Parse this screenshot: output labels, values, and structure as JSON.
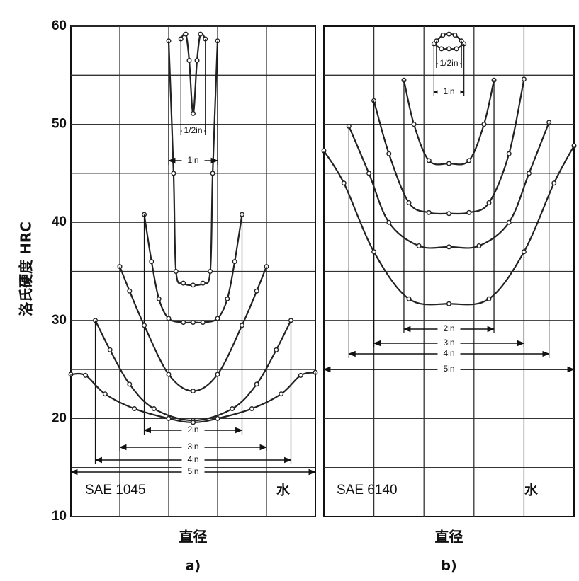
{
  "chart_data": [
    {
      "type": "line",
      "ylabel": "洛氏硬度  HRC",
      "xlabel": "直径",
      "panel": "a)",
      "note": "SAE 1045",
      "medium": "水",
      "xlim": [
        -2.5,
        2.5
      ],
      "ylim": [
        10,
        60
      ],
      "yticks": [
        10,
        20,
        30,
        40,
        50,
        60
      ],
      "xgrid": [
        -1.5,
        -0.5,
        0.5,
        1.5
      ],
      "ygrid": [
        15,
        25,
        35,
        45,
        55
      ],
      "color": "#222",
      "series": [
        {
          "name": "1/2in",
          "x": [
            -0.25,
            -0.15,
            -0.08,
            0,
            0.08,
            0.15,
            0.25
          ],
          "values": [
            58.7,
            59.2,
            56.5,
            51.1,
            56.5,
            59.2,
            58.7
          ]
        },
        {
          "name": "1in",
          "x": [
            -0.5,
            -0.4,
            -0.35,
            -0.2,
            0,
            0.2,
            0.35,
            0.4,
            0.5
          ],
          "values": [
            58.5,
            45,
            35,
            33.8,
            33.6,
            33.8,
            35,
            45,
            58.5
          ]
        },
        {
          "name": "2in",
          "x": [
            -1,
            -0.85,
            -0.7,
            -0.5,
            -0.2,
            0,
            0.2,
            0.5,
            0.7,
            0.85,
            1
          ],
          "values": [
            40.8,
            36,
            32.2,
            30.2,
            29.8,
            29.8,
            29.8,
            30.2,
            32.2,
            36,
            40.8
          ]
        },
        {
          "name": "3in",
          "x": [
            -1.5,
            -1.3,
            -1,
            -0.5,
            0,
            0.5,
            1,
            1.3,
            1.5
          ],
          "values": [
            35.5,
            33,
            29.5,
            24.5,
            22.8,
            24.5,
            29.5,
            33,
            35.5
          ]
        },
        {
          "name": "4in",
          "x": [
            -2,
            -1.7,
            -1.3,
            -0.8,
            0,
            0.8,
            1.3,
            1.7,
            2
          ],
          "values": [
            30,
            27,
            23.5,
            21,
            19.8,
            21,
            23.5,
            27,
            30
          ]
        },
        {
          "name": "5in",
          "x": [
            -2.5,
            -2.2,
            -1.8,
            -1.2,
            -0.5,
            0,
            0.5,
            1.2,
            1.8,
            2.2,
            2.5
          ],
          "values": [
            24.5,
            24.4,
            22.5,
            21,
            20,
            19.6,
            20,
            21,
            22.5,
            24.4,
            24.7
          ]
        }
      ]
    },
    {
      "type": "line",
      "xlabel": "直径",
      "panel": "b)",
      "note": "SAE 6140",
      "medium": "水",
      "xlim": [
        -2.5,
        2.5
      ],
      "ylim": [
        10,
        60
      ],
      "xgrid": [
        -1.5,
        -0.5,
        0.5,
        1.5
      ],
      "ygrid": [
        15,
        20,
        25,
        30,
        35,
        40,
        45,
        50,
        55
      ],
      "color": "#222",
      "series": [
        {
          "name": "1/2in",
          "x": [
            -0.25,
            -0.12,
            0,
            0.12,
            0.25
          ],
          "values": [
            58.5,
            59.1,
            59.2,
            59.1,
            58.5
          ]
        },
        {
          "name": "1in",
          "x": [
            -0.3,
            -0.15,
            0,
            0.15,
            0.3
          ],
          "values": [
            58.2,
            57.7,
            57.7,
            57.7,
            58.2
          ]
        },
        {
          "name": "2in",
          "x": [
            -0.9,
            -0.7,
            -0.4,
            0,
            0.4,
            0.7,
            0.9
          ],
          "values": [
            54.5,
            50,
            46.3,
            46,
            46.3,
            50,
            54.5
          ]
        },
        {
          "name": "3in",
          "x": [
            -1.5,
            -1.2,
            -0.8,
            -0.4,
            0,
            0.4,
            0.8,
            1.2,
            1.5
          ],
          "values": [
            52.4,
            47,
            42,
            41,
            40.9,
            41,
            42,
            47,
            54.6
          ]
        },
        {
          "name": "4in",
          "x": [
            -2,
            -1.6,
            -1.2,
            -0.6,
            0,
            0.6,
            1.2,
            1.6,
            2
          ],
          "values": [
            49.8,
            45,
            40,
            37.6,
            37.5,
            37.6,
            40,
            45,
            50.2
          ]
        },
        {
          "name": "5in",
          "x": [
            -2.5,
            -2.1,
            -1.5,
            -0.8,
            0,
            0.8,
            1.5,
            2.1,
            2.5
          ],
          "values": [
            47.3,
            44,
            37,
            32.2,
            31.7,
            32.2,
            37,
            44,
            47.8
          ]
        }
      ]
    }
  ]
}
